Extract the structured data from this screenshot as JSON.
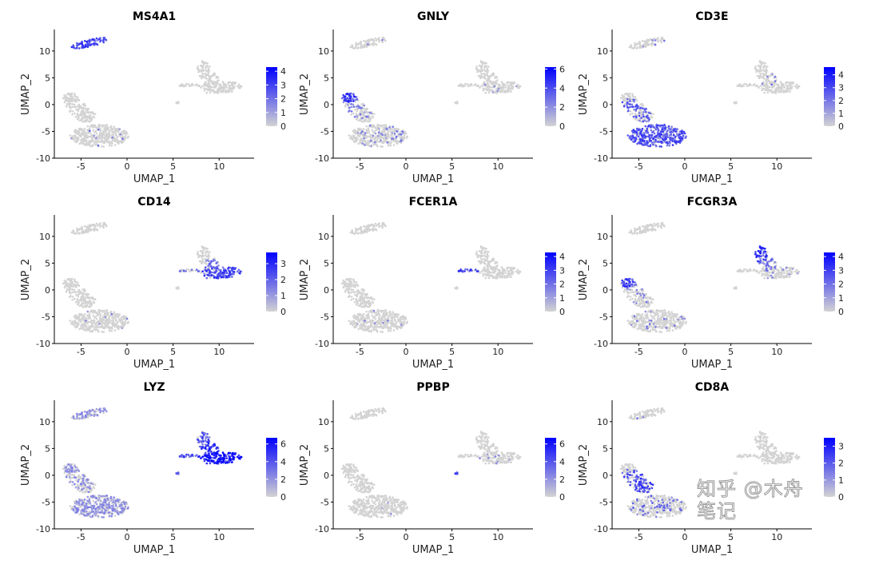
{
  "chart_data": [
    {
      "type": "scatter",
      "title": "MS4A1",
      "xlabel": "UMAP_1",
      "ylabel": "UMAP_2",
      "scale_max": 4.3,
      "legend_ticks": [
        0,
        1,
        2,
        3,
        4
      ],
      "expr": {
        "B": [
          0.95,
          0.6
        ],
        "Tbody": [
          0.03,
          0.4
        ]
      }
    },
    {
      "type": "scatter",
      "title": "GNLY",
      "xlabel": "UMAP_1",
      "ylabel": "UMAP_2",
      "scale_max": 6.2,
      "legend_ticks": [
        0,
        2,
        4,
        6
      ],
      "expr": {
        "NK": [
          0.95,
          0.65
        ],
        "Tarm": [
          0.35,
          0.35
        ],
        "Tbody": [
          0.12,
          0.35
        ],
        "B": [
          0.05,
          0.3
        ],
        "MonoMain": [
          0.05,
          0.3
        ]
      }
    },
    {
      "type": "scatter",
      "title": "CD3E",
      "xlabel": "UMAP_1",
      "ylabel": "UMAP_2",
      "scale_max": 4.6,
      "legend_ticks": [
        0,
        1,
        2,
        3,
        4
      ],
      "expr": {
        "Tbody": [
          0.85,
          0.55
        ],
        "Tarm": [
          0.7,
          0.5
        ],
        "B": [
          0.06,
          0.4
        ],
        "MonoMid": [
          0.1,
          0.4
        ]
      }
    },
    {
      "type": "scatter",
      "title": "CD14",
      "xlabel": "UMAP_1",
      "ylabel": "UMAP_2",
      "scale_max": 3.7,
      "legend_ticks": [
        0,
        1,
        2,
        3
      ],
      "expr": {
        "MonoMain": [
          0.9,
          0.6
        ],
        "MonoMid": [
          0.5,
          0.45
        ],
        "DC": [
          0.2,
          0.4
        ],
        "Tbody": [
          0.02,
          0.3
        ]
      }
    },
    {
      "type": "scatter",
      "title": "FCER1A",
      "xlabel": "UMAP_1",
      "ylabel": "UMAP_2",
      "scale_max": 4.3,
      "legend_ticks": [
        0,
        1,
        2,
        3,
        4
      ],
      "expr": {
        "DC": [
          0.7,
          0.6
        ],
        "Tbody": [
          0.02,
          0.3
        ]
      }
    },
    {
      "type": "scatter",
      "title": "FCGR3A",
      "xlabel": "UMAP_1",
      "ylabel": "UMAP_2",
      "scale_max": 4.3,
      "legend_ticks": [
        0,
        1,
        2,
        3,
        4
      ],
      "expr": {
        "MonoTop": [
          0.9,
          0.65
        ],
        "MonoMid": [
          0.4,
          0.4
        ],
        "NK": [
          0.9,
          0.6
        ],
        "Tarm": [
          0.2,
          0.35
        ],
        "Tbody": [
          0.05,
          0.35
        ],
        "MonoMain": [
          0.1,
          0.3
        ]
      }
    },
    {
      "type": "scatter",
      "title": "LYZ",
      "xlabel": "UMAP_1",
      "ylabel": "UMAP_2",
      "scale_max": 6.7,
      "legend_ticks": [
        0,
        2,
        4,
        6
      ],
      "expr": {
        "MonoMain": [
          1,
          0.8
        ],
        "MonoMid": [
          1,
          0.7
        ],
        "MonoTop": [
          0.9,
          0.55
        ],
        "DC": [
          1,
          0.6
        ],
        "Tbody": [
          0.6,
          0.3
        ],
        "Tarm": [
          0.5,
          0.3
        ],
        "NK": [
          0.4,
          0.3
        ],
        "B": [
          0.5,
          0.3
        ],
        "Platelet": [
          1,
          0.5
        ]
      }
    },
    {
      "type": "scatter",
      "title": "PPBP",
      "xlabel": "UMAP_1",
      "ylabel": "UMAP_2",
      "scale_max": 6.7,
      "legend_ticks": [
        0,
        2,
        4,
        6
      ],
      "expr": {
        "Platelet": [
          1,
          0.9
        ],
        "MonoMain": [
          0.04,
          0.3
        ],
        "Tbody": [
          0.01,
          0.3
        ]
      }
    },
    {
      "type": "scatter",
      "title": "CD8A",
      "xlabel": "UMAP_1",
      "ylabel": "UMAP_2",
      "scale_max": 3.5,
      "legend_ticks": [
        0,
        1,
        2,
        3
      ],
      "expr": {
        "Tarm": [
          0.6,
          0.6
        ],
        "CD8": [
          0.8,
          0.6
        ],
        "Tbody": [
          0.12,
          0.45
        ],
        "B": [
          0.02,
          0.4
        ]
      }
    }
  ],
  "axes": {
    "xlim": [
      -7.9,
      13.8
    ],
    "ylim": [
      -10,
      14
    ],
    "xticks": [
      -5,
      0,
      5,
      10
    ],
    "yticks": [
      -10,
      -5,
      0,
      5,
      10
    ]
  },
  "clusters": [
    {
      "id": "B",
      "cx": -4,
      "cy": 11.5,
      "rx": 2.2,
      "ry": 0.65,
      "rot": 22,
      "n": 90
    },
    {
      "id": "NK",
      "cx": -6.1,
      "cy": 1.3,
      "rx": 0.9,
      "ry": 0.8,
      "rot": 0,
      "n": 50
    },
    {
      "id": "Tarm",
      "cx": -5.2,
      "cy": -1,
      "rx": 1.1,
      "ry": 2.6,
      "rot": 30,
      "n": 90
    },
    {
      "id": "CD8",
      "cx": -4.4,
      "cy": -2.2,
      "rx": 1.2,
      "ry": 1.1,
      "rot": 0,
      "n": 40
    },
    {
      "id": "Tbody",
      "cx": -3,
      "cy": -5.8,
      "rx": 3.2,
      "ry": 2.1,
      "rot": 0,
      "n": 380
    },
    {
      "id": "MonoMain",
      "cx": 10.2,
      "cy": 3.2,
      "rx": 2.4,
      "ry": 1.1,
      "rot": 8,
      "n": 140
    },
    {
      "id": "MonoMid",
      "cx": 9,
      "cy": 4.8,
      "rx": 1,
      "ry": 1.2,
      "rot": 0,
      "n": 50
    },
    {
      "id": "MonoTop",
      "cx": 8.3,
      "cy": 6.6,
      "rx": 0.7,
      "ry": 1.6,
      "rot": 0,
      "n": 50
    },
    {
      "id": "DC",
      "cx": 6.8,
      "cy": 3.6,
      "rx": 1.2,
      "ry": 0.3,
      "rot": 0,
      "n": 25
    },
    {
      "id": "Platelet",
      "cx": 5.5,
      "cy": 0.4,
      "rx": 0.2,
      "ry": 0.2,
      "rot": 0,
      "n": 6
    }
  ],
  "colors": {
    "low": "#d3d3d3",
    "high": "#0000ff",
    "axis": "#000000"
  },
  "watermark": "知乎 @木舟笔记"
}
